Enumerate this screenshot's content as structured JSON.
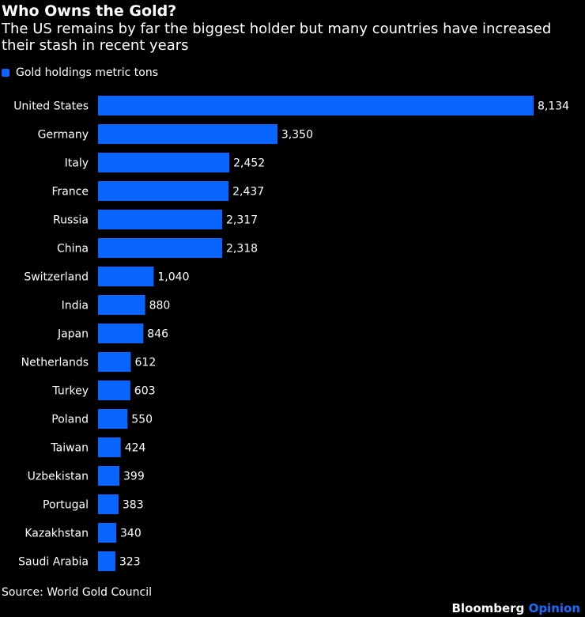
{
  "header": {
    "title": "Who Owns the Gold?",
    "subtitle": "The US remains by far the biggest holder but many countries have increased their stash in recent years"
  },
  "legend": {
    "label": "Gold holdings metric tons"
  },
  "footer": {
    "source": "Source: World Gold Council",
    "brand_main": "Bloomberg",
    "brand_accent": "Opinion"
  },
  "colors": {
    "bar": "#0a64ff",
    "background": "#000000",
    "text": "#ffffff",
    "brand_accent": "#1a6cff"
  },
  "chart_data": {
    "type": "bar",
    "orientation": "horizontal",
    "title": "Who Owns the Gold?",
    "series": [
      {
        "name": "Gold holdings metric tons"
      }
    ],
    "categories": [
      "United States",
      "Germany",
      "Italy",
      "France",
      "Russia",
      "China",
      "Switzerland",
      "India",
      "Japan",
      "Netherlands",
      "Turkey",
      "Poland",
      "Taiwan",
      "Uzbekistan",
      "Portugal",
      "Kazakhstan",
      "Saudi Arabia"
    ],
    "values": [
      8134,
      3350,
      2452,
      2437,
      2317,
      2318,
      1040,
      880,
      846,
      612,
      603,
      550,
      424,
      399,
      383,
      340,
      323
    ],
    "value_labels": [
      "8,134",
      "3,350",
      "2,452",
      "2,437",
      "2,317",
      "2,318",
      "1,040",
      "880",
      "846",
      "612",
      "603",
      "550",
      "424",
      "399",
      "383",
      "340",
      "323"
    ],
    "xlim": [
      0,
      8134
    ],
    "grid": false,
    "legend_position": "top-left"
  }
}
